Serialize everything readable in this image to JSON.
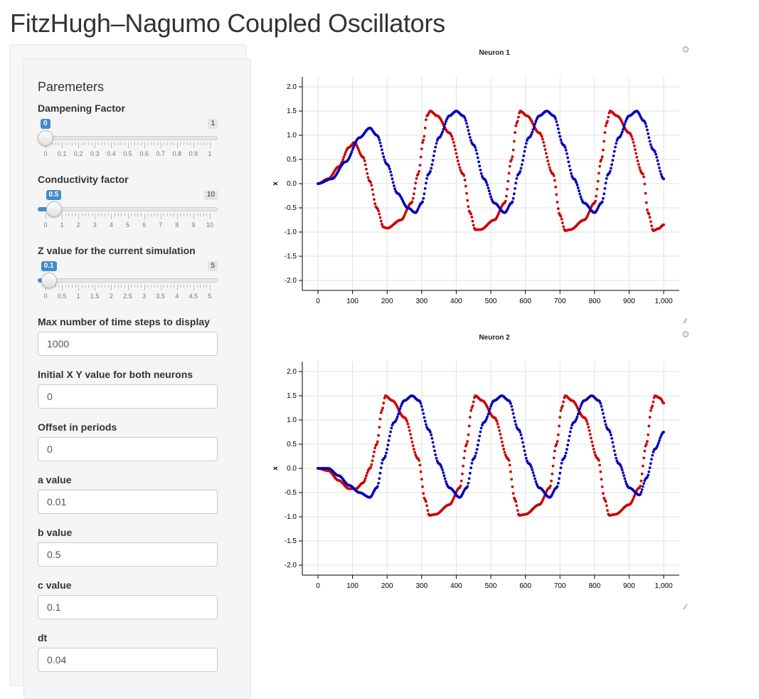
{
  "page": {
    "title": "FitzHugh–Nagumo Coupled Oscillators"
  },
  "sidebar": {
    "heading": "Paremeters",
    "sliders": [
      {
        "label": "Dampening Factor",
        "value": 0,
        "value_label": "0",
        "min": 0,
        "max": 1,
        "max_label": "1",
        "tick_labels": [
          "0",
          "0.1",
          "0.2",
          "0.3",
          "0.4",
          "0.5",
          "0.6",
          "0.7",
          "0.8",
          "0.9",
          "1"
        ]
      },
      {
        "label": "Conductivity factor",
        "value": 0.5,
        "value_label": "0.5",
        "min": 0,
        "max": 10,
        "max_label": "10",
        "tick_labels": [
          "0",
          "1",
          "2",
          "3",
          "4",
          "5",
          "6",
          "7",
          "8",
          "9",
          "10"
        ]
      },
      {
        "label": "Z value for the current simulation",
        "value": 0.1,
        "value_label": "0.1",
        "min": 0,
        "max": 5,
        "max_label": "5",
        "tick_labels": [
          "0",
          "0.5",
          "1",
          "1.5",
          "2",
          "2.5",
          "3",
          "3.5",
          "4",
          "4.5",
          "5"
        ]
      }
    ],
    "inputs": [
      {
        "label": "Max number of time steps to display",
        "value": "1000"
      },
      {
        "label": "Initial X Y value for both neurons",
        "value": "0"
      },
      {
        "label": "Offset in periods",
        "value": "0"
      },
      {
        "label": "a value",
        "value": "0.01"
      },
      {
        "label": "b value",
        "value": "0.5"
      },
      {
        "label": "c value",
        "value": "0.1"
      },
      {
        "label": "dt",
        "value": "0.04"
      }
    ]
  },
  "colors": {
    "red_series": "#cc0000",
    "blue_series": "#0000bb",
    "accent": "#428bca"
  },
  "icons": {
    "settings": "gear-icon",
    "resize": "resize-grip-icon"
  },
  "chart_data": [
    {
      "type": "scatter",
      "title": "Neuron 1",
      "ylabel": "x",
      "xlim": [
        0,
        1000
      ],
      "ylim": [
        -2.0,
        2.0
      ],
      "x_ticks": [
        0,
        100,
        200,
        300,
        400,
        500,
        600,
        700,
        800,
        900,
        1000
      ],
      "x_tick_labels": [
        "0",
        "100",
        "200",
        "300",
        "400",
        "500",
        "600",
        "700",
        "800",
        "900",
        "1,000"
      ],
      "y_ticks": [
        2.0,
        1.5,
        1.0,
        0.5,
        0.0,
        -0.5,
        -1.0,
        -1.5,
        -2.0
      ],
      "y_tick_labels": [
        "2.0",
        "1.5",
        "1.0",
        "0.5",
        "0.0",
        "-0.5",
        "-1.0",
        "-1.5",
        "-2.0"
      ],
      "grid": true,
      "series": [
        {
          "color": "#cc0000",
          "points": [
            [
              0,
              0
            ],
            [
              30,
              0.1
            ],
            [
              60,
              0.35
            ],
            [
              90,
              0.75
            ],
            [
              105,
              0.85
            ],
            [
              130,
              0.55
            ],
            [
              150,
              0.05
            ],
            [
              170,
              -0.5
            ],
            [
              190,
              -0.9
            ],
            [
              200,
              -0.92
            ],
            [
              240,
              -0.75
            ],
            [
              270,
              -0.4
            ],
            [
              290,
              0.2
            ],
            [
              305,
              0.9
            ],
            [
              315,
              1.4
            ],
            [
              325,
              1.5
            ],
            [
              345,
              1.4
            ],
            [
              380,
              1.05
            ],
            [
              420,
              0.2
            ],
            [
              440,
              -0.6
            ],
            [
              455,
              -0.95
            ],
            [
              470,
              -0.95
            ],
            [
              510,
              -0.75
            ],
            [
              540,
              -0.4
            ],
            [
              560,
              0.5
            ],
            [
              575,
              1.25
            ],
            [
              585,
              1.5
            ],
            [
              605,
              1.4
            ],
            [
              640,
              1.05
            ],
            [
              680,
              0.2
            ],
            [
              700,
              -0.65
            ],
            [
              715,
              -0.97
            ],
            [
              730,
              -0.95
            ],
            [
              770,
              -0.75
            ],
            [
              800,
              -0.4
            ],
            [
              820,
              0.5
            ],
            [
              835,
              1.25
            ],
            [
              845,
              1.5
            ],
            [
              865,
              1.4
            ],
            [
              900,
              1.05
            ],
            [
              940,
              0.2
            ],
            [
              955,
              -0.6
            ],
            [
              970,
              -0.97
            ],
            [
              985,
              -0.93
            ],
            [
              1000,
              -0.85
            ]
          ]
        },
        {
          "color": "#0000bb",
          "points": [
            [
              0,
              0
            ],
            [
              40,
              0.1
            ],
            [
              80,
              0.45
            ],
            [
              120,
              0.95
            ],
            [
              150,
              1.15
            ],
            [
              170,
              1.0
            ],
            [
              200,
              0.4
            ],
            [
              230,
              -0.2
            ],
            [
              260,
              -0.5
            ],
            [
              282,
              -0.6
            ],
            [
              300,
              -0.4
            ],
            [
              320,
              0.2
            ],
            [
              350,
              0.95
            ],
            [
              380,
              1.4
            ],
            [
              400,
              1.5
            ],
            [
              420,
              1.4
            ],
            [
              450,
              0.8
            ],
            [
              480,
              0.1
            ],
            [
              510,
              -0.4
            ],
            [
              540,
              -0.6
            ],
            [
              560,
              -0.4
            ],
            [
              580,
              0.2
            ],
            [
              610,
              0.95
            ],
            [
              640,
              1.4
            ],
            [
              662,
              1.5
            ],
            [
              682,
              1.4
            ],
            [
              710,
              0.8
            ],
            [
              740,
              0.1
            ],
            [
              770,
              -0.4
            ],
            [
              800,
              -0.6
            ],
            [
              820,
              -0.4
            ],
            [
              840,
              0.2
            ],
            [
              870,
              0.95
            ],
            [
              900,
              1.4
            ],
            [
              922,
              1.5
            ],
            [
              942,
              1.3
            ],
            [
              970,
              0.7
            ],
            [
              1000,
              0.1
            ]
          ]
        }
      ]
    },
    {
      "type": "scatter",
      "title": "Neuron 2",
      "ylabel": "x",
      "xlim": [
        0,
        1000
      ],
      "ylim": [
        -2.0,
        2.0
      ],
      "x_ticks": [
        0,
        100,
        200,
        300,
        400,
        500,
        600,
        700,
        800,
        900,
        1000
      ],
      "x_tick_labels": [
        "0",
        "100",
        "200",
        "300",
        "400",
        "500",
        "600",
        "700",
        "800",
        "900",
        "1,000"
      ],
      "y_ticks": [
        2.0,
        1.5,
        1.0,
        0.5,
        0.0,
        -0.5,
        -1.0,
        -1.5,
        -2.0
      ],
      "y_tick_labels": [
        "2.0",
        "1.5",
        "1.0",
        "0.5",
        "0.0",
        "-0.5",
        "-1.0",
        "-1.5",
        "-2.0"
      ],
      "grid": true,
      "series": [
        {
          "color": "#cc0000",
          "points": [
            [
              0,
              0
            ],
            [
              30,
              -0.05
            ],
            [
              60,
              -0.25
            ],
            [
              90,
              -0.42
            ],
            [
              110,
              -0.42
            ],
            [
              130,
              -0.3
            ],
            [
              150,
              0.0
            ],
            [
              170,
              0.5
            ],
            [
              185,
              1.2
            ],
            [
              195,
              1.5
            ],
            [
              215,
              1.4
            ],
            [
              250,
              1.05
            ],
            [
              290,
              0.2
            ],
            [
              310,
              -0.65
            ],
            [
              322,
              -0.97
            ],
            [
              340,
              -0.95
            ],
            [
              380,
              -0.75
            ],
            [
              410,
              -0.4
            ],
            [
              430,
              0.5
            ],
            [
              445,
              1.25
            ],
            [
              455,
              1.5
            ],
            [
              475,
              1.4
            ],
            [
              510,
              1.05
            ],
            [
              550,
              0.2
            ],
            [
              570,
              -0.65
            ],
            [
              582,
              -0.97
            ],
            [
              600,
              -0.95
            ],
            [
              640,
              -0.75
            ],
            [
              670,
              -0.4
            ],
            [
              690,
              0.5
            ],
            [
              705,
              1.25
            ],
            [
              715,
              1.5
            ],
            [
              735,
              1.4
            ],
            [
              770,
              1.05
            ],
            [
              810,
              0.2
            ],
            [
              830,
              -0.65
            ],
            [
              842,
              -0.97
            ],
            [
              860,
              -0.95
            ],
            [
              900,
              -0.75
            ],
            [
              930,
              -0.4
            ],
            [
              950,
              0.5
            ],
            [
              965,
              1.25
            ],
            [
              975,
              1.5
            ],
            [
              990,
              1.45
            ],
            [
              1000,
              1.35
            ]
          ]
        },
        {
          "color": "#0000bb",
          "points": [
            [
              0,
              0
            ],
            [
              30,
              0.0
            ],
            [
              60,
              -0.15
            ],
            [
              90,
              -0.35
            ],
            [
              120,
              -0.5
            ],
            [
              150,
              -0.6
            ],
            [
              170,
              -0.4
            ],
            [
              190,
              0.2
            ],
            [
              220,
              0.95
            ],
            [
              250,
              1.4
            ],
            [
              272,
              1.5
            ],
            [
              292,
              1.4
            ],
            [
              320,
              0.8
            ],
            [
              350,
              0.1
            ],
            [
              380,
              -0.4
            ],
            [
              410,
              -0.6
            ],
            [
              430,
              -0.4
            ],
            [
              450,
              0.2
            ],
            [
              480,
              0.95
            ],
            [
              510,
              1.4
            ],
            [
              532,
              1.5
            ],
            [
              552,
              1.4
            ],
            [
              580,
              0.8
            ],
            [
              610,
              0.1
            ],
            [
              640,
              -0.4
            ],
            [
              670,
              -0.6
            ],
            [
              690,
              -0.4
            ],
            [
              710,
              0.2
            ],
            [
              740,
              0.95
            ],
            [
              770,
              1.4
            ],
            [
              792,
              1.5
            ],
            [
              812,
              1.4
            ],
            [
              840,
              0.8
            ],
            [
              870,
              0.1
            ],
            [
              900,
              -0.4
            ],
            [
              930,
              -0.55
            ],
            [
              950,
              -0.2
            ],
            [
              975,
              0.4
            ],
            [
              1000,
              0.75
            ]
          ]
        }
      ]
    }
  ]
}
